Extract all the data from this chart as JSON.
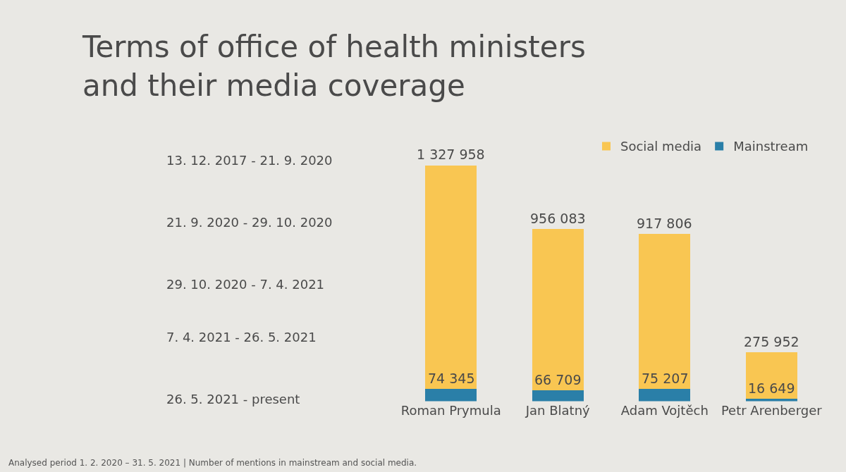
{
  "chart_data": {
    "type": "bar",
    "stacked": true,
    "title": "Terms of office of health ministers\nand their media coverage",
    "categories": [
      "Roman Prymula",
      "Jan Blatný",
      "Adam Vojtěch",
      "Petr Arenberger"
    ],
    "series": [
      {
        "name": "Mainstream",
        "color": "#2a7fa8",
        "values": [
          74345,
          66709,
          75207,
          16649
        ],
        "value_labels": [
          "74 345",
          "66 709",
          "75 207",
          "16 649"
        ]
      },
      {
        "name": "Social media",
        "color": "#f9c652",
        "values": [
          1327958,
          956083,
          917806,
          275952
        ],
        "value_labels": [
          "1 327 958",
          "956 083",
          "917 806",
          "275 952"
        ]
      }
    ],
    "legend": "top right",
    "grid": false,
    "annotations": [
      "13. 12. 2017 - 21. 9. 2020",
      "21. 9. 2020 - 29. 10. 2020",
      "29. 10. 2020 - 7. 4. 2021",
      "7. 4. 2021 - 26. 5. 2021",
      "26. 5. 2021 - present",
      "Analysed period 1. 2. 2020 – 31. 5. 2021 | Number of mentions in mainstream and social media."
    ]
  }
}
